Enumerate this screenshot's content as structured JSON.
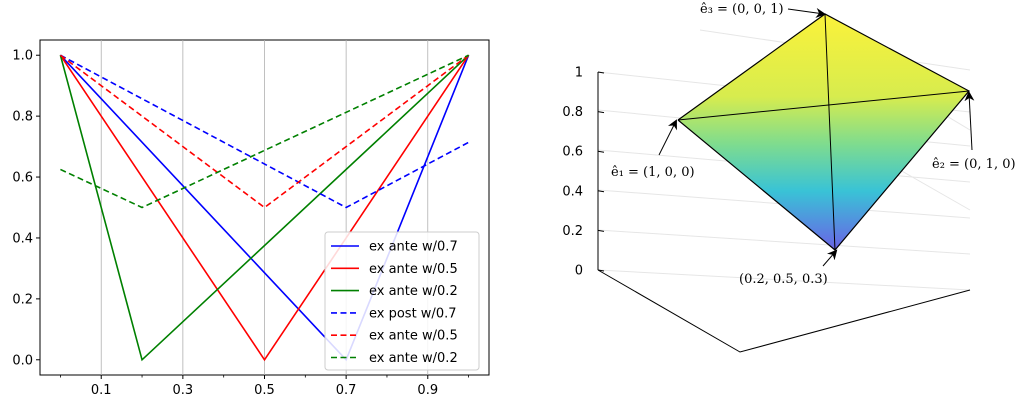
{
  "chart_data": [
    {
      "type": "line",
      "title": "",
      "xlabel": "",
      "ylabel": "",
      "xlim": [
        -0.05,
        1.05
      ],
      "ylim": [
        -0.05,
        1.05
      ],
      "x_ticks": [
        0.1,
        0.3,
        0.5,
        0.7,
        0.9
      ],
      "x_tick_labels": [
        "0.1",
        "0.3",
        "0.5",
        "0.7",
        "0.9"
      ],
      "y_ticks": [
        0.0,
        0.2,
        0.4,
        0.6,
        0.8,
        1.0
      ],
      "y_tick_labels": [
        "0.0",
        "0.2",
        "0.4",
        "0.6",
        "0.8",
        "1.0"
      ],
      "grid": "vertical",
      "legend_position": "lower-right",
      "series": [
        {
          "name": "ex ante w/0.7",
          "color": "#0000ff",
          "style": "solid",
          "x": [
            0,
            0.7,
            1
          ],
          "y": [
            1.0,
            0.0,
            1.0
          ]
        },
        {
          "name": "ex ante w/0.5",
          "color": "#ff0000",
          "style": "solid",
          "x": [
            0,
            0.5,
            1
          ],
          "y": [
            1.0,
            0.0,
            1.0
          ]
        },
        {
          "name": "ex ante w/0.2",
          "color": "#008000",
          "style": "solid",
          "x": [
            0,
            0.2,
            1
          ],
          "y": [
            1.0,
            0.0,
            1.0
          ]
        },
        {
          "name": "ex post w/0.7",
          "color": "#0000ff",
          "style": "dashed",
          "x": [
            0,
            0.7,
            1
          ],
          "y": [
            1.0,
            0.5,
            0.714
          ]
        },
        {
          "name": "ex ante w/0.5",
          "color": "#ff0000",
          "style": "dashed",
          "x": [
            0,
            0.5,
            1
          ],
          "y": [
            1.0,
            0.5,
            1.0
          ]
        },
        {
          "name": "ex ante w/0.2",
          "color": "#008000",
          "style": "dashed",
          "x": [
            0,
            0.2,
            1
          ],
          "y": [
            0.625,
            0.5,
            1.0
          ]
        }
      ]
    },
    {
      "type": "surface3d",
      "title": "",
      "z_ticks": [
        0,
        0.2,
        0.4,
        0.6,
        0.8,
        1
      ],
      "z_tick_labels": [
        "0",
        "0.2",
        "0.4",
        "0.6",
        "0.8",
        "1"
      ],
      "annotations": [
        {
          "label": "ê₁ = (1, 0, 0)"
        },
        {
          "label": "ê₂ = (0, 1, 0)"
        },
        {
          "label": "ê₃ = (0, 0, 1)"
        },
        {
          "label": "(0.2, 0.5, 0.3)"
        }
      ]
    }
  ]
}
